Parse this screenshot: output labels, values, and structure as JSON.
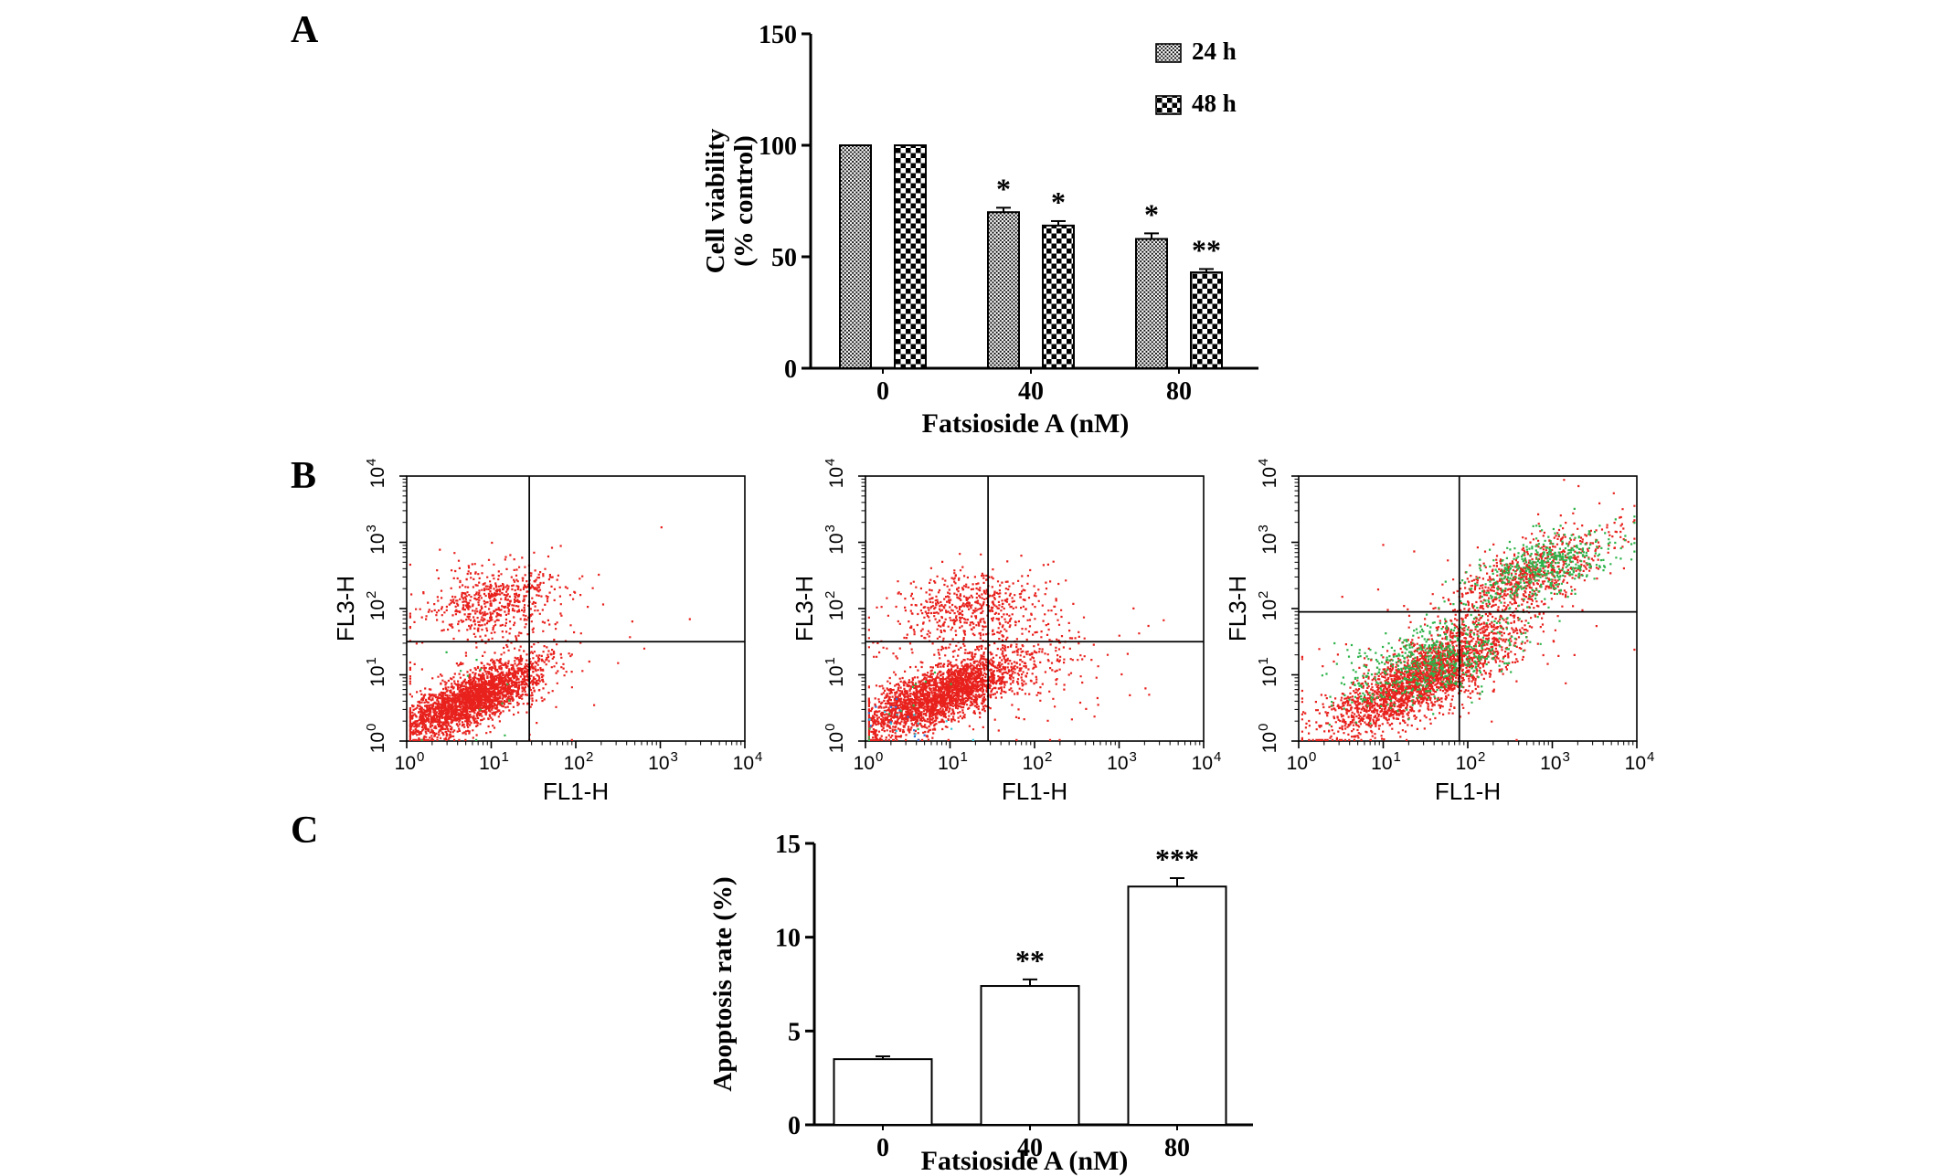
{
  "panels": {
    "a": "A",
    "b": "B",
    "c": "C"
  },
  "colors": {
    "red": "#e8211d",
    "green": "#2db34a",
    "blue": "#2b6fd4",
    "cyan": "#35c4d7",
    "axis": "#000000",
    "background": "#ffffff"
  },
  "chart_data": [
    {
      "id": "viability",
      "panel": "A",
      "type": "bar",
      "title": "",
      "xlabel": "Fatsioside A (nM)",
      "ylabel_lines": [
        "Cell viability",
        "(% control)"
      ],
      "ylim": [
        0,
        150
      ],
      "yticks": [
        0,
        50,
        100,
        150
      ],
      "categories": [
        "0",
        "40",
        "80"
      ],
      "series": [
        {
          "name": "24 h",
          "pattern": "stipple",
          "values": [
            100,
            70,
            58
          ],
          "errors": [
            0,
            2,
            2.5
          ],
          "annotations": [
            "",
            "*",
            "*"
          ]
        },
        {
          "name": "48 h",
          "pattern": "checker",
          "values": [
            100,
            64,
            43
          ],
          "errors": [
            0,
            2,
            1.5
          ],
          "annotations": [
            "",
            "*",
            "**"
          ]
        }
      ],
      "legend_position": "top-right",
      "grid": false
    },
    {
      "id": "flow_0",
      "panel": "B",
      "type": "scatter",
      "axis_scale": "log10",
      "xlabel": "FL1-H",
      "ylabel": "FL3-H",
      "xlim_exp": [
        0,
        4
      ],
      "ylim_exp": [
        0,
        4
      ],
      "tick_exponents": [
        0,
        1,
        2,
        3,
        4
      ],
      "quadrant_gate": {
        "x_exp": 1.45,
        "y_exp": 1.5
      },
      "clusters": [
        {
          "name": "live-main",
          "color": "#e8211d",
          "count": 2600,
          "cx": 0.75,
          "cy": 0.65,
          "sx": 0.42,
          "sy": 0.3,
          "corr": 0.75
        },
        {
          "name": "upper-left-cloud",
          "color": "#e8211d",
          "count": 620,
          "cx": 1.05,
          "cy": 2.1,
          "sx": 0.4,
          "sy": 0.28,
          "corr": 0.15
        },
        {
          "name": "outliers",
          "color": "#e8211d",
          "count": 70,
          "cx": 1.1,
          "cy": 1.1,
          "sx": 0.9,
          "sy": 0.75,
          "corr": 0.2
        },
        {
          "name": "green-sparse",
          "color": "#2db34a",
          "count": 12,
          "cx": 0.8,
          "cy": 0.8,
          "sx": 0.5,
          "sy": 0.4,
          "corr": 0.5
        }
      ]
    },
    {
      "id": "flow_40",
      "panel": "B",
      "type": "scatter",
      "axis_scale": "log10",
      "xlabel": "FL1-H",
      "ylabel": "FL3-H",
      "xlim_exp": [
        0,
        4
      ],
      "ylim_exp": [
        0,
        4
      ],
      "tick_exponents": [
        0,
        1,
        2,
        3,
        4
      ],
      "quadrant_gate": {
        "x_exp": 1.45,
        "y_exp": 1.5
      },
      "clusters": [
        {
          "name": "live-main",
          "color": "#e8211d",
          "count": 2600,
          "cx": 0.85,
          "cy": 0.7,
          "sx": 0.5,
          "sy": 0.32,
          "corr": 0.75
        },
        {
          "name": "upper-cloud",
          "color": "#e8211d",
          "count": 580,
          "cx": 1.25,
          "cy": 2.0,
          "sx": 0.45,
          "sy": 0.3,
          "corr": 0.15
        },
        {
          "name": "mid-right",
          "color": "#e8211d",
          "count": 130,
          "cx": 2.05,
          "cy": 1.1,
          "sx": 0.5,
          "sy": 0.45,
          "corr": 0.3
        },
        {
          "name": "outliers",
          "color": "#e8211d",
          "count": 80,
          "cx": 1.2,
          "cy": 1.2,
          "sx": 0.95,
          "sy": 0.8,
          "corr": 0.2
        },
        {
          "name": "blue-sparse",
          "color": "#2b6fd4",
          "count": 14,
          "cx": 0.25,
          "cy": 0.35,
          "sx": 0.22,
          "sy": 0.22,
          "corr": 0
        },
        {
          "name": "cyan-sparse",
          "color": "#35c4d7",
          "count": 12,
          "cx": 0.45,
          "cy": 0.2,
          "sx": 0.25,
          "sy": 0.2,
          "corr": 0
        },
        {
          "name": "green-sparse",
          "color": "#2db34a",
          "count": 12,
          "cx": 0.55,
          "cy": 0.55,
          "sx": 0.3,
          "sy": 0.3,
          "corr": 0.4
        }
      ]
    },
    {
      "id": "flow_80",
      "panel": "B",
      "type": "scatter",
      "axis_scale": "log10",
      "xlabel": "FL1-H",
      "ylabel": "FL3-H",
      "xlim_exp": [
        0,
        4
      ],
      "ylim_exp": [
        0,
        4
      ],
      "tick_exponents": [
        0,
        1,
        2,
        3,
        4
      ],
      "quadrant_gate": {
        "x_exp": 1.9,
        "y_exp": 1.95
      },
      "clusters": [
        {
          "name": "main-red",
          "color": "#e8211d",
          "count": 2400,
          "cx": 1.45,
          "cy": 0.95,
          "sx": 0.55,
          "sy": 0.42,
          "corr": 0.78
        },
        {
          "name": "main-green",
          "color": "#2db34a",
          "count": 620,
          "cx": 1.6,
          "cy": 1.25,
          "sx": 0.5,
          "sy": 0.35,
          "corr": 0.6
        },
        {
          "name": "upper-right-red",
          "color": "#e8211d",
          "count": 760,
          "cx": 2.7,
          "cy": 2.5,
          "sx": 0.5,
          "sy": 0.38,
          "corr": 0.7
        },
        {
          "name": "upper-right-green",
          "color": "#2db34a",
          "count": 480,
          "cx": 2.85,
          "cy": 2.62,
          "sx": 0.42,
          "sy": 0.3,
          "corr": 0.6
        },
        {
          "name": "outliers",
          "color": "#e8211d",
          "count": 70,
          "cx": 1.8,
          "cy": 1.6,
          "sx": 1.0,
          "sy": 0.8,
          "corr": 0.3
        }
      ]
    },
    {
      "id": "apoptosis",
      "panel": "C",
      "type": "bar",
      "title": "",
      "xlabel": "Fatsioside A (nM)",
      "ylabel_lines": [
        "Apoptosis rate (%)"
      ],
      "ylim": [
        0,
        15
      ],
      "yticks": [
        0,
        5,
        10,
        15
      ],
      "categories": [
        "0",
        "40",
        "80"
      ],
      "series": [
        {
          "name": "",
          "pattern": "none",
          "values": [
            3.5,
            7.4,
            12.7
          ],
          "errors": [
            0.15,
            0.35,
            0.45
          ],
          "annotations": [
            "",
            "**",
            "***"
          ]
        }
      ],
      "legend_position": "none",
      "grid": false
    }
  ]
}
